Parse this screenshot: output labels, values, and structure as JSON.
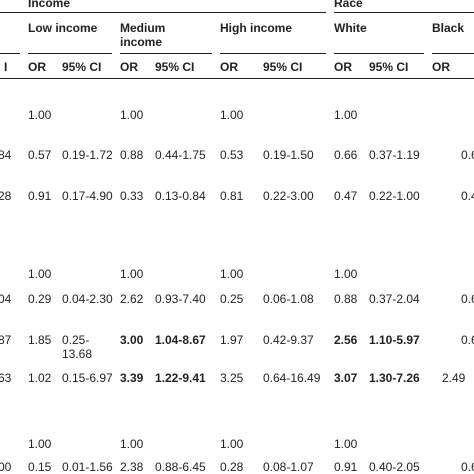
{
  "header": {
    "group1": "Income",
    "group2": "Race",
    "sub": [
      "Low income",
      "Medium",
      "income",
      "High income",
      "White",
      "Black"
    ],
    "left_cut_label": "I",
    "cols": [
      "OR",
      "95% CI",
      "OR",
      "95% CI",
      "OR",
      "95% CI",
      "OR",
      "95% CI",
      "OR"
    ]
  },
  "rows": [
    {
      "lead": "",
      "c": [
        "1.00",
        "",
        "1.00",
        "",
        "1.00",
        "",
        "1.00",
        "",
        ""
      ]
    },
    {
      "lead": "84",
      "c": [
        "0.57",
        "0.19-1.72",
        "0.88",
        "0.44-1.75",
        "0.53",
        "0.19-1.50",
        "0.66",
        "0.37-1.19",
        "0.6"
      ]
    },
    {
      "lead": "28",
      "c": [
        "0.91",
        "0.17-4.90",
        "0.33",
        "0.13-0.84",
        "0.81",
        "0.22-3.00",
        "0.47",
        "0.22-1.00",
        "0.4"
      ]
    },
    {
      "lead": "",
      "c": [
        "1.00",
        "",
        "1.00",
        "",
        "1.00",
        "",
        "1.00",
        "",
        ""
      ]
    },
    {
      "lead": "04",
      "c": [
        "0.29",
        "0.04-2.30",
        "2.62",
        "0.93-7.40",
        "0.25",
        "0.06-1.08",
        "0.88",
        "0.37-2.04",
        "0.6"
      ]
    },
    {
      "lead": "87",
      "c": [
        "1.85",
        "0.25-",
        "3.00",
        "1.04-8.67",
        "1.97",
        "0.42-9.37",
        "2.56",
        "1.10-5.97",
        "0.6"
      ],
      "c2": "13.68"
    },
    {
      "lead": "63",
      "c": [
        "1.02",
        "0.15-6.97",
        "3.39",
        "1.22-9.41",
        "3.25",
        "0.64-16.49",
        "3.07",
        "1.30-7.26",
        "2.49"
      ]
    },
    {
      "lead": "",
      "c": [
        "1.00",
        "",
        "1.00",
        "",
        "1.00",
        "",
        "1.00",
        "",
        ""
      ]
    },
    {
      "lead": "00",
      "c": [
        "0.15",
        "0.01-1.56",
        "2.38",
        "0.88-6.45",
        "0.28",
        "0.08-1.07",
        "0.91",
        "0.40-2.05",
        "0.6"
      ]
    }
  ]
}
